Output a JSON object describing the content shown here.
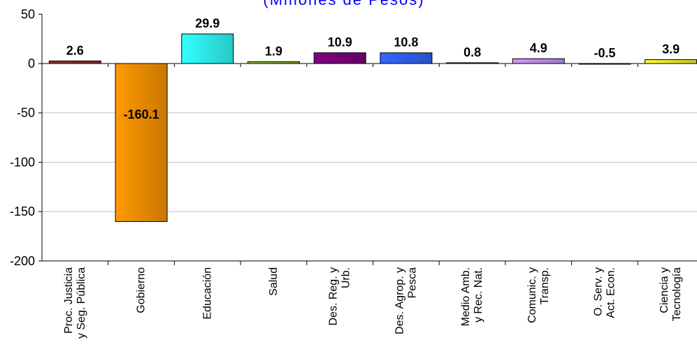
{
  "chart_data": {
    "type": "bar",
    "subtitle": "(Millones de Pesos)",
    "categories": [
      [
        "Proc. Justicia",
        "y Seg. Pública"
      ],
      [
        "Gobierno"
      ],
      [
        "Educación"
      ],
      [
        "Salud"
      ],
      [
        "Des. Reg. y",
        "Urb."
      ],
      [
        "Des. Agrop. y",
        "Pesca"
      ],
      [
        "Medio Amb.",
        "y Rec. Nat."
      ],
      [
        "Comunic. y",
        "Transp."
      ],
      [
        "O. Serv. y",
        "Act. Econ."
      ],
      [
        "Ciencia y",
        "Tecnología"
      ]
    ],
    "values": [
      2.6,
      -160.1,
      29.9,
      1.9,
      10.9,
      10.8,
      0.8,
      4.9,
      -0.5,
      3.9
    ],
    "yticks": [
      50,
      0,
      -50,
      -100,
      -150,
      -200
    ],
    "ylim": [
      -200,
      50
    ],
    "grid": true,
    "bar_colors": [
      "#993333",
      "#FF9900",
      "#33FFFF",
      "#99CC33",
      "#800080",
      "#3366FF",
      "#1F3F1F",
      "#CC99FF",
      "#336666",
      "#FFFF33"
    ]
  }
}
